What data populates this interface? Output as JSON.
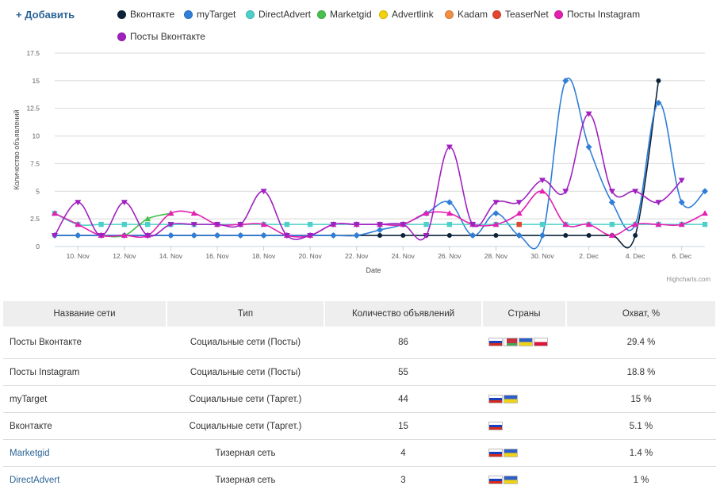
{
  "toolbar": {
    "add_label": "+ Добавить"
  },
  "legend": [
    {
      "name": "Вконтакте",
      "color": "#0d233a"
    },
    {
      "name": "myTarget",
      "color": "#2f7ed8"
    },
    {
      "name": "DirectAdvert",
      "color": "#4dd0c9"
    },
    {
      "name": "Marketgid",
      "color": "#46c14c"
    },
    {
      "name": "Advertlink",
      "color": "#f4d20b"
    },
    {
      "name": "Kadam",
      "color": "#f28f43"
    },
    {
      "name": "TeaserNet",
      "color": "#e5452d"
    },
    {
      "name": "Посты Instagram",
      "color": "#e41fb2"
    },
    {
      "name": "Посты Вконтакте",
      "color": "#a020c0"
    }
  ],
  "credits": "Highcharts.com",
  "chart_data": {
    "type": "line",
    "ylabel": "Количество объявлений",
    "xlabel": "Date",
    "ylim": [
      0,
      17.5
    ],
    "yticks": [
      "0",
      "2.5",
      "5",
      "7.5",
      "10",
      "12.5",
      "15",
      "17.5"
    ],
    "x": [
      "9. Nov",
      "10. Nov",
      "11. Nov",
      "12. Nov",
      "13. Nov",
      "14. Nov",
      "15. Nov",
      "16. Nov",
      "17. Nov",
      "18. Nov",
      "19. Nov",
      "20. Nov",
      "21. Nov",
      "22. Nov",
      "23. Nov",
      "24. Nov",
      "25. Nov",
      "26. Nov",
      "27. Nov",
      "28. Nov",
      "29. Nov",
      "30. Nov",
      "1. Dec",
      "2. Dec",
      "3. Dec",
      "4. Dec",
      "5. Dec",
      "6. Dec",
      "7. Dec"
    ],
    "xticks": [
      "10. Nov",
      "12. Nov",
      "14. Nov",
      "16. Nov",
      "18. Nov",
      "20. Nov",
      "22. Nov",
      "24. Nov",
      "26. Nov",
      "28. Nov",
      "30. Nov",
      "2. Dec",
      "4. Dec",
      "6. Dec"
    ],
    "grid": true,
    "series": [
      {
        "name": "Вконтакте",
        "color": "#0d233a",
        "marker": "circle",
        "values": [
          1,
          1,
          1,
          1,
          1,
          1,
          1,
          1,
          1,
          1,
          1,
          1,
          1,
          1,
          1,
          1,
          1,
          1,
          1,
          1,
          1,
          1,
          1,
          1,
          1,
          1,
          15,
          null,
          null
        ]
      },
      {
        "name": "myTarget",
        "color": "#2f7ed8",
        "marker": "diamond",
        "values": [
          1,
          1,
          1,
          1,
          1,
          1,
          1,
          1,
          1,
          1,
          1,
          1,
          1,
          1,
          1.5,
          2,
          3,
          4,
          1,
          3,
          1,
          1,
          15,
          9,
          4,
          2,
          13,
          4,
          5
        ]
      },
      {
        "name": "DirectAdvert",
        "color": "#4dd0c9",
        "marker": "square",
        "values": [
          3,
          2,
          2,
          2,
          2,
          2,
          2,
          2,
          2,
          2,
          2,
          2,
          2,
          2,
          2,
          2,
          2,
          2,
          2,
          2,
          2,
          2,
          2,
          2,
          2,
          2,
          2,
          2,
          2
        ]
      },
      {
        "name": "Marketgid",
        "color": "#46c14c",
        "marker": "triangle",
        "values": [
          null,
          null,
          1,
          1,
          2.5,
          3,
          null,
          null,
          null,
          null,
          null,
          null,
          null,
          null,
          null,
          null,
          null,
          null,
          null,
          null,
          null,
          null,
          null,
          null,
          null,
          null,
          null,
          null,
          null
        ]
      },
      {
        "name": "TeaserNet",
        "color": "#e5452d",
        "marker": "square",
        "values": [
          null,
          null,
          null,
          null,
          null,
          null,
          null,
          null,
          null,
          null,
          null,
          null,
          null,
          null,
          null,
          null,
          null,
          null,
          null,
          null,
          2,
          null,
          null,
          null,
          null,
          null,
          null,
          null,
          null
        ]
      },
      {
        "name": "Посты Instagram",
        "color": "#e41fb2",
        "marker": "triangle",
        "values": [
          3,
          2,
          1,
          1,
          1,
          3,
          3,
          2,
          2,
          2,
          1,
          1,
          2,
          2,
          2,
          2,
          3,
          3,
          2,
          2,
          3,
          5,
          2,
          2,
          1,
          2,
          2,
          2,
          3
        ]
      },
      {
        "name": "Посты Вконтакте",
        "color": "#a020c0",
        "marker": "triangle-down",
        "values": [
          1,
          4,
          1,
          4,
          1,
          2,
          2,
          2,
          2,
          5,
          1,
          1,
          2,
          2,
          2,
          2,
          1,
          9,
          2,
          4,
          4,
          6,
          5,
          12,
          5,
          5,
          4,
          6,
          null
        ]
      }
    ]
  },
  "table": {
    "headers": [
      "Название сети",
      "Тип",
      "Количество объявлений",
      "Страны",
      "Охват, %"
    ],
    "rows": [
      {
        "name": "Посты Вконтакте",
        "type": "Социальные сети (Посты)",
        "count": "86",
        "flags": [
          "ru",
          "by",
          "ua",
          "pl"
        ],
        "coverage": "29.4 %",
        "link": false
      },
      {
        "name": "Посты Instagram",
        "type": "Социальные сети (Посты)",
        "count": "55",
        "flags": [],
        "coverage": "18.8 %",
        "link": false
      },
      {
        "name": "myTarget",
        "type": "Социальные сети (Таргет.)",
        "count": "44",
        "flags": [
          "ru",
          "ua"
        ],
        "coverage": "15 %",
        "link": false
      },
      {
        "name": "Вконтакте",
        "type": "Социальные сети (Таргет.)",
        "count": "15",
        "flags": [
          "ru"
        ],
        "coverage": "5.1 %",
        "link": false
      },
      {
        "name": "Marketgid",
        "type": "Тизерная сеть",
        "count": "4",
        "flags": [
          "ru",
          "ua"
        ],
        "coverage": "1.4 %",
        "link": true
      },
      {
        "name": "DirectAdvert",
        "type": "Тизерная сеть",
        "count": "3",
        "flags": [
          "ru",
          "ua"
        ],
        "coverage": "1 %",
        "link": true
      }
    ]
  }
}
